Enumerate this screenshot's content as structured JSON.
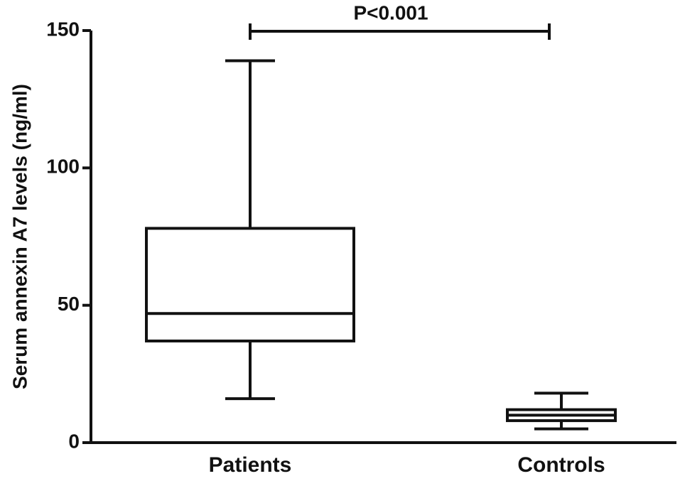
{
  "chart_data": {
    "type": "box",
    "y_label": "Serum annexin A7 levels (ng/ml)",
    "annotation": "P<0.001",
    "categories": [
      "Patients",
      "Controls"
    ],
    "boxes": [
      {
        "min": 16,
        "q1": 37,
        "median": 47,
        "q3": 78,
        "max": 139
      },
      {
        "min": 5,
        "q1": 8,
        "median": 10,
        "q3": 12,
        "max": 18
      }
    ],
    "color": "#111111",
    "ylim": [
      0,
      150
    ],
    "yticks": [
      0,
      50,
      100,
      150
    ]
  }
}
